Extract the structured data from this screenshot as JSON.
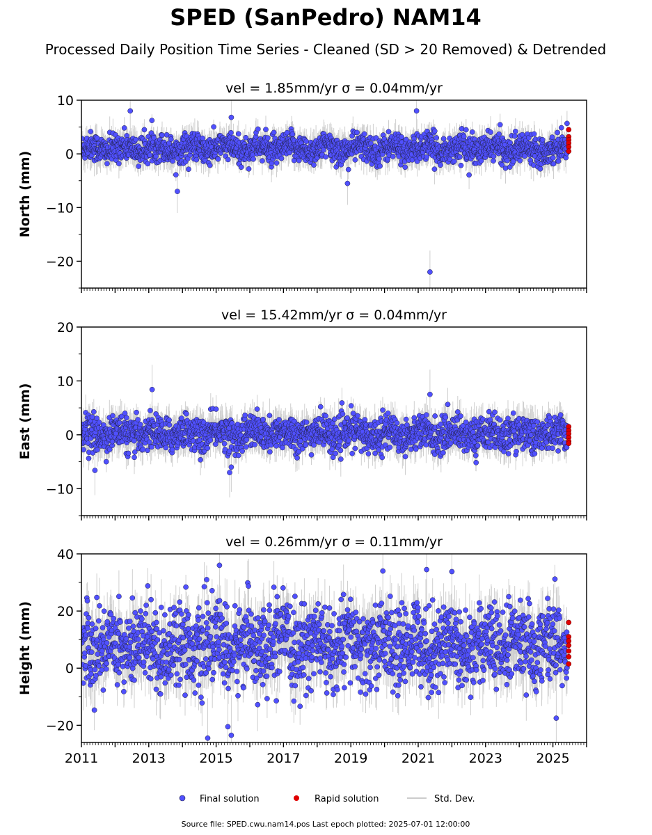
{
  "title": "SPED (SanPedro) NAM14",
  "subtitle": "Processed Daily Position Time Series - Cleaned (SD > 20 Removed) & Detrended",
  "footer": "Source file: SPED.cwu.nam14.pos  Last epoch plotted: 2025-07-01 12:00:00",
  "legend": {
    "final": "Final solution",
    "rapid": "Rapid solution",
    "std": "Std. Dev."
  },
  "colors": {
    "final": "#5050ff",
    "rapid": "#e00000",
    "std": "#bbbbbb",
    "edge": "#222244"
  },
  "chart_data": [
    {
      "type": "scatter",
      "title": "vel = 1.85mm/yr   σ = 0.04mm/yr",
      "ylabel": "North (mm)",
      "xlim": [
        2011.0,
        2026.0
      ],
      "ylim": [
        -25,
        10
      ],
      "yticks": [
        10,
        0,
        -10,
        -20
      ],
      "ytick_labels": [
        "10",
        "0",
        "−10",
        "−20"
      ],
      "sigma_mm": 1.3,
      "mean_mm": 1.0,
      "errorbar_mm": 2.0,
      "outliers": [
        {
          "x": 2013.85,
          "y": -7.0
        },
        {
          "x": 2021.35,
          "y": -22.0
        },
        {
          "x": 2012.45,
          "y": 8.0
        },
        {
          "x": 2020.95,
          "y": 8.0
        },
        {
          "x": 2015.45,
          "y": 6.8
        },
        {
          "x": 2018.9,
          "y": -5.5
        }
      ],
      "rapid_points": {
        "x": 2025.47,
        "y": [
          4.5,
          3.2,
          2.6,
          2.0,
          1.3,
          0.5
        ]
      }
    },
    {
      "type": "scatter",
      "title": "vel = 15.42mm/yr   σ = 0.04mm/yr",
      "ylabel": "East (mm)",
      "xlim": [
        2011.0,
        2026.0
      ],
      "ylim": [
        -15,
        20
      ],
      "yticks": [
        20,
        10,
        0,
        -10
      ],
      "ytick_labels": [
        "20",
        "10",
        "0",
        "−10"
      ],
      "sigma_mm": 1.6,
      "mean_mm": 0.2,
      "errorbar_mm": 2.3,
      "outliers": [
        {
          "x": 2013.1,
          "y": 8.4
        },
        {
          "x": 2011.4,
          "y": -6.6
        },
        {
          "x": 2015.4,
          "y": -7.0
        },
        {
          "x": 2021.35,
          "y": 7.5
        },
        {
          "x": 2015.45,
          "y": -6.0
        }
      ],
      "rapid_points": {
        "x": 2025.47,
        "y": [
          1.5,
          0.8,
          0.2,
          -0.5,
          -1.2,
          -1.6
        ]
      }
    },
    {
      "type": "scatter",
      "title": "vel = 0.26mm/yr   σ = 0.11mm/yr",
      "ylabel": "Height (mm)",
      "xlim": [
        2011.0,
        2026.0
      ],
      "ylim": [
        -26,
        40
      ],
      "yticks": [
        40,
        20,
        0,
        -20
      ],
      "ytick_labels": [
        "40",
        "20",
        "0",
        "−20"
      ],
      "sigma_mm": 7.0,
      "mean_mm": 8.0,
      "errorbar_mm": 7.0,
      "outliers": [
        {
          "x": 2015.1,
          "y": 36.0
        },
        {
          "x": 2019.95,
          "y": 34.0
        },
        {
          "x": 2021.25,
          "y": 34.5
        },
        {
          "x": 2022.0,
          "y": 33.8
        },
        {
          "x": 2015.35,
          "y": -20.5
        },
        {
          "x": 2015.45,
          "y": -23.5
        },
        {
          "x": 2014.75,
          "y": -24.5
        },
        {
          "x": 2025.1,
          "y": -17.5
        }
      ],
      "rapid_points": {
        "x": 2025.47,
        "y": [
          16.0,
          11.0,
          9.5,
          8.0,
          6.0,
          4.0,
          1.5
        ]
      }
    }
  ],
  "x_axis": {
    "ticks": [
      2011,
      2013,
      2015,
      2017,
      2019,
      2021,
      2023,
      2025
    ],
    "tick_labels": [
      "2011",
      "2013",
      "2015",
      "2017",
      "2019",
      "2021",
      "2023",
      "2025"
    ]
  }
}
